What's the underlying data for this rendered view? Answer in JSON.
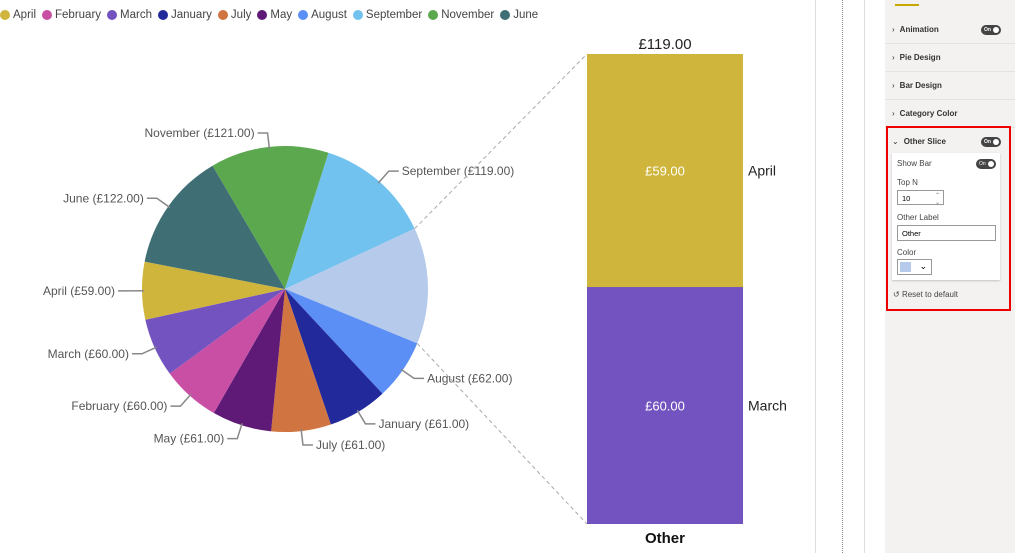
{
  "chart_data": {
    "type": "pie",
    "legend_position": "top-left",
    "legend": [
      "April",
      "February",
      "March",
      "January",
      "July",
      "May",
      "August",
      "September",
      "November",
      "June"
    ],
    "slices": [
      {
        "name": "September",
        "value": 119,
        "label": "September (£119.00)",
        "color": "#72c2ef"
      },
      {
        "name": "Other",
        "value": 119,
        "label": "",
        "color": "#b6caeb"
      },
      {
        "name": "August",
        "value": 62,
        "label": "August (£62.00)",
        "color": "#5b8ff5"
      },
      {
        "name": "January",
        "value": 61,
        "label": "January (£61.00)",
        "color": "#22299a"
      },
      {
        "name": "July",
        "value": 61,
        "label": "July (£61.00)",
        "color": "#d07441"
      },
      {
        "name": "May",
        "value": 61,
        "label": "May (£61.00)",
        "color": "#5e1a76"
      },
      {
        "name": "February",
        "value": 60,
        "label": "February (£60.00)",
        "color": "#c94fa5"
      },
      {
        "name": "March",
        "value": 60,
        "label": "March (£60.00)",
        "color": "#7353bf"
      },
      {
        "name": "April",
        "value": 59,
        "label": "April (£59.00)",
        "color": "#cfb53b"
      },
      {
        "name": "June",
        "value": 122,
        "label": "June (£122.00)",
        "color": "#3f6f74"
      },
      {
        "name": "November",
        "value": 121,
        "label": "November (£121.00)",
        "color": "#5ba84f"
      }
    ],
    "other_bar": {
      "title": "Other",
      "total_label": "£119.00",
      "segments": [
        {
          "name": "April",
          "value": 59,
          "label": "£59.00",
          "color": "#cfb53b"
        },
        {
          "name": "March",
          "value": 60,
          "label": "£60.00",
          "color": "#7353bf"
        }
      ]
    }
  },
  "panel": {
    "sections": [
      "Animation",
      "Pie Design",
      "Bar Design",
      "Category Color"
    ],
    "animation_toggle": "On",
    "other_slice": {
      "title": "Other Slice",
      "toggle": "On",
      "show_bar_label": "Show Bar",
      "show_bar_toggle": "On",
      "top_n_label": "Top N",
      "top_n": "10",
      "other_label_label": "Other Label",
      "other_label": "Other",
      "color_label": "Color",
      "color": "#b6caeb"
    },
    "reset": "Reset to default"
  }
}
